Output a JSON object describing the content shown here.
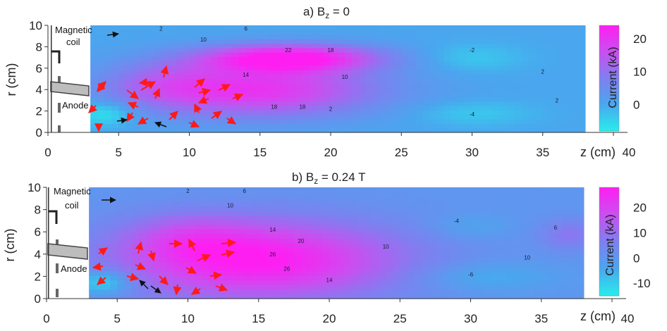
{
  "chart_data": [
    {
      "type": "heatmap",
      "title_main": "a) B",
      "title_sub": "z",
      "title_tail": " = 0",
      "xlabel": "z (cm)",
      "ylabel": "r (cm)",
      "xlim": [
        0,
        40
      ],
      "ylim": [
        0,
        10
      ],
      "xticks": [
        "0",
        "5",
        "10",
        "15",
        "20",
        "25",
        "30",
        "35",
        "40"
      ],
      "yticks": [
        "0",
        "2",
        "4",
        "6",
        "8",
        "10"
      ],
      "data_extent_z": [
        3,
        38
      ],
      "grid": false,
      "annotations": {
        "magnetic": "Magnetic",
        "coil": "coil",
        "anode": "Anode"
      },
      "colorbar": {
        "label": "Current (kA)",
        "ticks": [
          "20",
          "10",
          "0"
        ],
        "tick_values": [
          20,
          10,
          0
        ],
        "range": [
          -8,
          24
        ],
        "colors": [
          "#27ecec",
          "#4aa6ee",
          "#7f7ff0",
          "#c94ff0",
          "#ff1ef2"
        ]
      },
      "features": [
        {
          "z": 17,
          "r": 7.0,
          "value": 24,
          "sz": 4.5,
          "sr": 0.9
        },
        {
          "z": 15,
          "r": 4.0,
          "value": 20,
          "sz": 6.0,
          "sr": 1.8
        },
        {
          "z": 8,
          "r": 4.5,
          "value": 7,
          "sz": 3.0,
          "sr": 1.5
        },
        {
          "z": 30,
          "r": 7.0,
          "value": -4,
          "sz": 2.5,
          "sr": 0.9
        },
        {
          "z": 30,
          "r": 1.8,
          "value": -4,
          "sz": 3.0,
          "sr": 0.8
        },
        {
          "z": 4,
          "r": 1.8,
          "value": -8,
          "sz": 1.5,
          "sr": 0.8
        }
      ],
      "contour_labels": [
        {
          "z": 8,
          "r": 9.5,
          "text": "2"
        },
        {
          "z": 14,
          "r": 9.5,
          "text": "6"
        },
        {
          "z": 11,
          "r": 8.5,
          "text": "10"
        },
        {
          "z": 17,
          "r": 7.5,
          "text": "22"
        },
        {
          "z": 20,
          "r": 7.5,
          "text": "18"
        },
        {
          "z": 14,
          "r": 5.2,
          "text": "14"
        },
        {
          "z": 16,
          "r": 2.2,
          "text": "18"
        },
        {
          "z": 18,
          "r": 2.2,
          "text": "18"
        },
        {
          "z": 21,
          "r": 5.0,
          "text": "10"
        },
        {
          "z": 20,
          "r": 2.0,
          "text": "2"
        },
        {
          "z": 30,
          "r": 7.5,
          "text": "-2"
        },
        {
          "z": 30,
          "r": 1.5,
          "text": "-4"
        },
        {
          "z": 35,
          "r": 5.5,
          "text": "2"
        },
        {
          "z": 36,
          "r": 2.8,
          "text": "2"
        }
      ]
    },
    {
      "type": "heatmap",
      "title_main": "b) B",
      "title_sub": "z",
      "title_tail": " = 0.24 T",
      "xlabel": "z (cm)",
      "ylabel": "r (cm)",
      "xlim": [
        0,
        40
      ],
      "ylim": [
        0,
        10
      ],
      "xticks": [
        "0",
        "5",
        "10",
        "15",
        "20",
        "25",
        "30",
        "35",
        "40"
      ],
      "yticks": [
        "0",
        "2",
        "4",
        "6",
        "8",
        "10"
      ],
      "data_extent_z": [
        3,
        38
      ],
      "grid": false,
      "annotations": {
        "magnetic": "Magnetic",
        "coil": "coil",
        "anode": "Anode"
      },
      "colorbar": {
        "label": "Current (kA)",
        "ticks": [
          "20",
          "10",
          "0",
          "-10"
        ],
        "tick_values": [
          20,
          10,
          0,
          -10
        ],
        "range": [
          -15,
          28
        ],
        "colors": [
          "#27ecec",
          "#4aa6ee",
          "#7f7ff0",
          "#c94ff0",
          "#ff1ef2"
        ]
      },
      "features": [
        {
          "z": 15,
          "r": 3.5,
          "value": 28,
          "sz": 7.0,
          "sr": 2.5
        },
        {
          "z": 10,
          "r": 5.5,
          "value": 8,
          "sz": 3.0,
          "sr": 1.5
        },
        {
          "z": 30,
          "r": 6.5,
          "value": -4,
          "sz": 2.0,
          "sr": 0.8
        },
        {
          "z": 31,
          "r": 2.0,
          "value": -6,
          "sz": 3.5,
          "sr": 0.9
        },
        {
          "z": 4,
          "r": 1.5,
          "value": -15,
          "sz": 1.5,
          "sr": 0.8
        },
        {
          "z": 37,
          "r": 5.8,
          "value": 8,
          "sz": 1.5,
          "sr": 1.0
        }
      ],
      "contour_labels": [
        {
          "z": 10,
          "r": 9.5,
          "text": "2"
        },
        {
          "z": 14,
          "r": 9.5,
          "text": "6"
        },
        {
          "z": 13,
          "r": 8.2,
          "text": "10"
        },
        {
          "z": 16,
          "r": 6.0,
          "text": "14"
        },
        {
          "z": 18,
          "r": 5.0,
          "text": "20"
        },
        {
          "z": 16,
          "r": 3.8,
          "text": "26"
        },
        {
          "z": 17,
          "r": 2.5,
          "text": "26"
        },
        {
          "z": 20,
          "r": 1.5,
          "text": "14"
        },
        {
          "z": 24,
          "r": 4.5,
          "text": "10"
        },
        {
          "z": 29,
          "r": 6.8,
          "text": "-4"
        },
        {
          "z": 30,
          "r": 2.0,
          "text": "-6"
        },
        {
          "z": 34,
          "r": 3.5,
          "text": "10"
        },
        {
          "z": 36,
          "r": 6.2,
          "text": "6"
        }
      ]
    }
  ]
}
